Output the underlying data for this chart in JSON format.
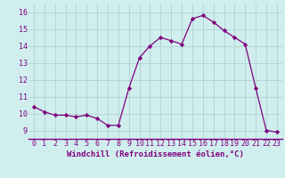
{
  "x": [
    0,
    1,
    2,
    3,
    4,
    5,
    6,
    7,
    8,
    9,
    10,
    11,
    12,
    13,
    14,
    15,
    16,
    17,
    18,
    19,
    20,
    21,
    22,
    23
  ],
  "y": [
    10.4,
    10.1,
    9.9,
    9.9,
    9.8,
    9.9,
    9.7,
    9.3,
    9.3,
    11.5,
    13.3,
    14.0,
    14.5,
    14.3,
    14.1,
    15.6,
    15.8,
    15.4,
    14.9,
    14.5,
    14.1,
    11.5,
    9.0,
    8.9
  ],
  "line_color": "#800080",
  "marker": "D",
  "marker_size": 2.2,
  "bg_color": "#d0eeee",
  "grid_color": "#aacccc",
  "xlabel": "Windchill (Refroidissement éolien,°C)",
  "xlabel_color": "#800080",
  "xlabel_fontsize": 6.5,
  "xtick_labels": [
    "0",
    "1",
    "2",
    "3",
    "4",
    "5",
    "6",
    "7",
    "8",
    "9",
    "10",
    "11",
    "12",
    "13",
    "14",
    "15",
    "16",
    "17",
    "18",
    "19",
    "20",
    "21",
    "22",
    "23"
  ],
  "ytick_values": [
    9,
    10,
    11,
    12,
    13,
    14,
    15,
    16
  ],
  "ylim": [
    8.5,
    16.5
  ],
  "xlim": [
    -0.5,
    23.5
  ],
  "tick_color": "#800080",
  "tick_fontsize": 6.0,
  "bottom_line_color": "#800080",
  "linewidth": 0.9
}
